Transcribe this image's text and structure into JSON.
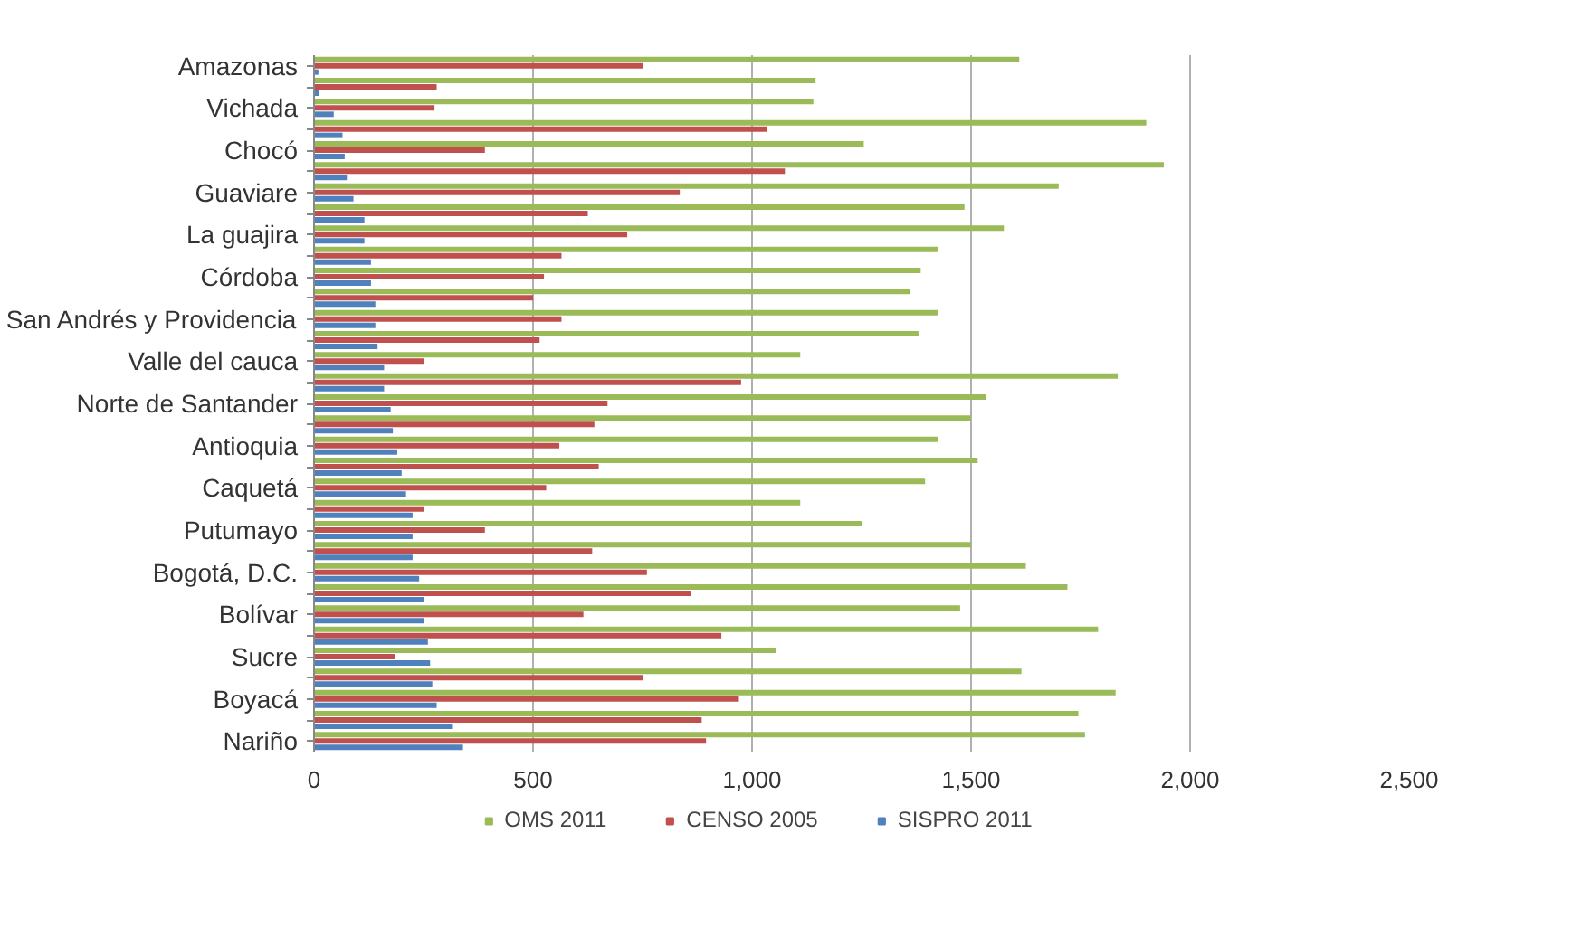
{
  "chart_data": {
    "type": "bar",
    "orientation": "horizontal",
    "categories": [
      "Amazonas",
      null,
      "Vichada",
      null,
      "Chocó",
      null,
      "Guaviare",
      null,
      "La guajira",
      null,
      "Córdoba",
      null,
      "San Andrés y Providencia",
      null,
      "Valle del cauca",
      null,
      "Norte de Santander",
      null,
      "Antioquia",
      null,
      "Caquetá",
      null,
      "Putumayo",
      null,
      "Bogotá, D.C.",
      null,
      "Bolívar",
      null,
      "Sucre",
      null,
      "Boyacá",
      null,
      "Nariño"
    ],
    "series": [
      {
        "name": "OMS 2011",
        "color": "#9bbb59",
        "values": [
          1610,
          1145,
          1140,
          1900,
          1255,
          1940,
          1700,
          1485,
          1575,
          1425,
          1385,
          1360,
          1425,
          1380,
          1110,
          1835,
          1535,
          1500,
          1425,
          1515,
          1395,
          1110,
          1250,
          1500,
          1625,
          1720,
          1475,
          1790,
          1055,
          1615,
          1830,
          1745,
          1760
        ]
      },
      {
        "name": "CENSO 2005",
        "color": "#c0504d",
        "values": [
          750,
          280,
          275,
          1035,
          390,
          1075,
          835,
          625,
          715,
          565,
          525,
          500,
          565,
          515,
          250,
          975,
          670,
          640,
          560,
          650,
          530,
          250,
          390,
          635,
          760,
          860,
          615,
          930,
          185,
          750,
          970,
          885,
          895
        ]
      },
      {
        "name": "SISPRO 2011",
        "color": "#4f81bd",
        "values": [
          10,
          12,
          45,
          65,
          70,
          75,
          90,
          115,
          115,
          130,
          130,
          140,
          140,
          145,
          160,
          160,
          175,
          180,
          190,
          200,
          210,
          225,
          225,
          225,
          240,
          250,
          250,
          260,
          265,
          270,
          280,
          315,
          340
        ]
      }
    ],
    "xlim": [
      0,
      2500
    ],
    "xticks": [
      0,
      500,
      {
        "value": 1000,
        "label": "1,000"
      },
      {
        "value": 1500,
        "label": "1,500"
      },
      {
        "value": 2000,
        "label": "2,000"
      },
      {
        "value": 2500,
        "label": "2,500"
      }
    ],
    "grid": "x",
    "legend": "bottom"
  }
}
